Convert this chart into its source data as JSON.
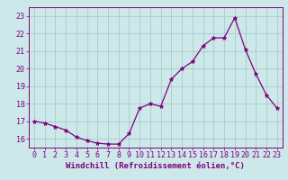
{
  "x": [
    0,
    1,
    2,
    3,
    4,
    5,
    6,
    7,
    8,
    9,
    10,
    11,
    12,
    13,
    14,
    15,
    16,
    17,
    18,
    19,
    20,
    21,
    22,
    23
  ],
  "y": [
    17.0,
    16.9,
    16.7,
    16.5,
    16.1,
    15.9,
    15.75,
    15.7,
    15.7,
    16.3,
    17.75,
    18.0,
    17.85,
    19.4,
    20.0,
    20.4,
    21.3,
    21.75,
    21.75,
    22.9,
    21.1,
    19.7,
    18.5,
    17.75
  ],
  "line_color": "#800080",
  "marker": "*",
  "marker_size": 3.5,
  "bg_color": "#cce8e8",
  "grid_color": "#aacccc",
  "xlabel": "Windchill (Refroidissement éolien,°C)",
  "xlabel_fontsize": 6.5,
  "tick_fontsize": 6.0,
  "ylim": [
    15.5,
    23.5
  ],
  "xlim": [
    -0.5,
    23.5
  ],
  "yticks": [
    16,
    17,
    18,
    19,
    20,
    21,
    22,
    23
  ],
  "xticks": [
    0,
    1,
    2,
    3,
    4,
    5,
    6,
    7,
    8,
    9,
    10,
    11,
    12,
    13,
    14,
    15,
    16,
    17,
    18,
    19,
    20,
    21,
    22,
    23
  ]
}
